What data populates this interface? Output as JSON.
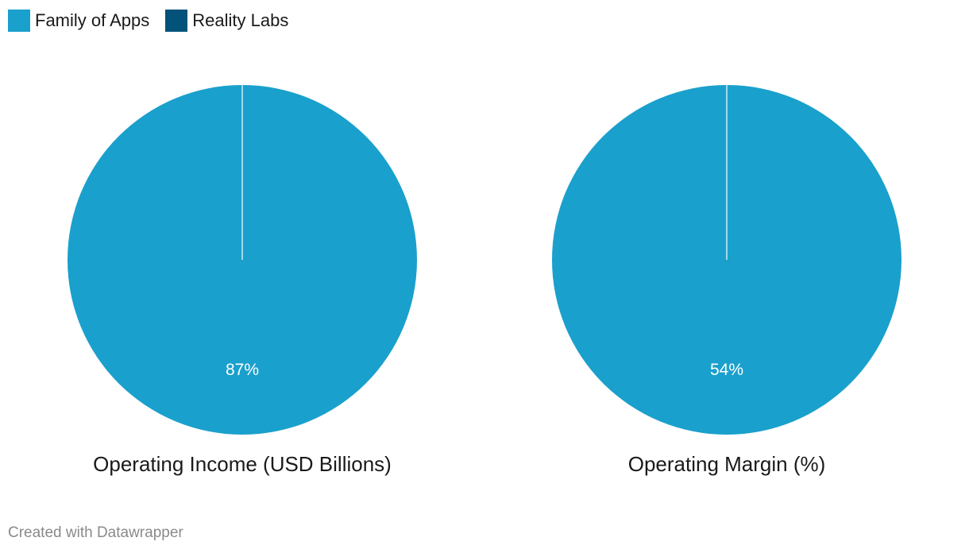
{
  "legend": [
    {
      "label": "Family of Apps",
      "color": "#1aa0cc"
    },
    {
      "label": "Reality Labs",
      "color": "#02527a"
    }
  ],
  "chart_data": [
    {
      "type": "pie",
      "title": "Operating Income (USD Billions)",
      "slices": [
        {
          "name": "Family of Apps",
          "value": 1,
          "label": "87%",
          "color": "#1aa0cc"
        },
        {
          "name": "Reality Labs",
          "value": 0,
          "label": "",
          "color": "#02527a"
        }
      ]
    },
    {
      "type": "pie",
      "title": "Operating Margin (%)",
      "slices": [
        {
          "name": "Family of Apps",
          "value": 1,
          "label": "54%",
          "color": "#1aa0cc"
        },
        {
          "name": "Reality Labs",
          "value": 0,
          "label": "",
          "color": "#02527a"
        }
      ]
    }
  ],
  "footer": "Created with Datawrapper"
}
